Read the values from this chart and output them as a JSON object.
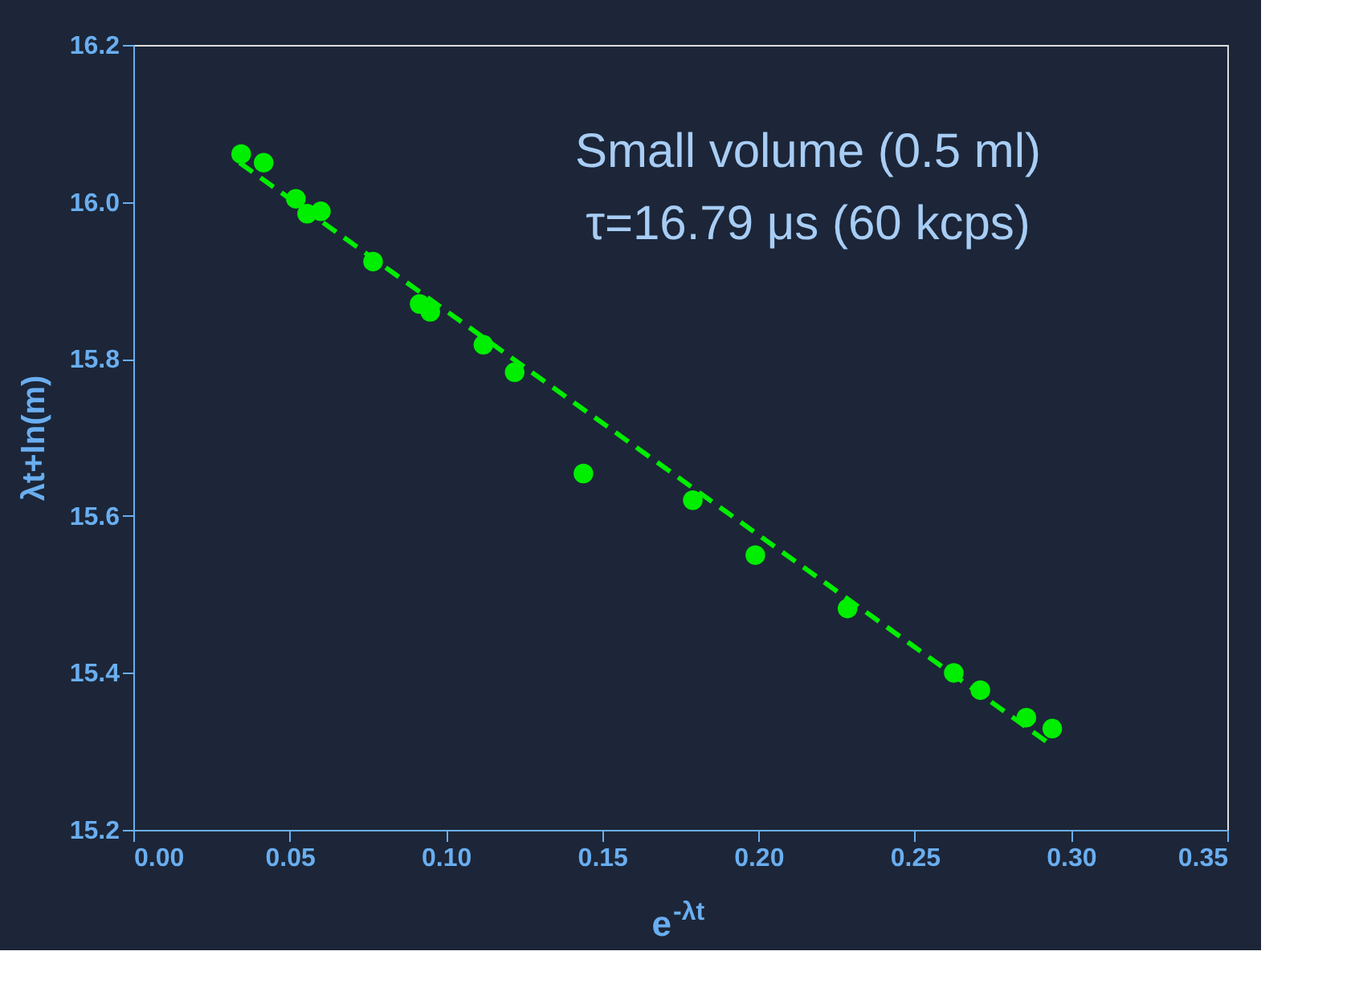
{
  "chart_data": {
    "type": "scatter",
    "xlabel": "e$^{-λt}$",
    "ylabel": "λt+ln(m)",
    "annotations": [
      "Small volume (0.5 ml)",
      "τ=16.79 μs (60 kcps)"
    ],
    "x": [
      0.0345,
      0.0417,
      0.052,
      0.0556,
      0.06,
      0.0767,
      0.0916,
      0.095,
      0.112,
      0.122,
      0.144,
      0.179,
      0.199,
      0.2285,
      0.2625,
      0.271,
      0.2857,
      0.294
    ],
    "series": [
      {
        "color": "#00ee00",
        "marker": "circle",
        "values": [
          16.061,
          16.05,
          16.004,
          15.985,
          15.988,
          15.924,
          15.87,
          15.86,
          15.818,
          15.783,
          15.654,
          15.62,
          15.55,
          15.482,
          15.4,
          15.378,
          15.343,
          15.329
        ]
      },
      {
        "type": "line",
        "color": "#00ee00",
        "line_style": "dashed",
        "marker": "none",
        "x": [
          0.034,
          0.293
        ],
        "values": [
          16.05,
          15.31
        ]
      }
    ],
    "xlim": [
      0.0,
      0.35
    ],
    "xticks": [
      {
        "value": 0,
        "label": "0.00"
      },
      0.05,
      {
        "value": 0.1,
        "label": "0.10"
      },
      0.15,
      {
        "value": 0.2,
        "label": "0.20"
      },
      0.25,
      {
        "value": 0.3,
        "label": "0.30"
      },
      0.35
    ],
    "ylim": [
      15.2,
      16.2
    ],
    "yticks": [
      15.2,
      15.4,
      15.6,
      15.8,
      {
        "value": 16.0,
        "label": "16.0"
      },
      16.2
    ],
    "grid": false
  }
}
